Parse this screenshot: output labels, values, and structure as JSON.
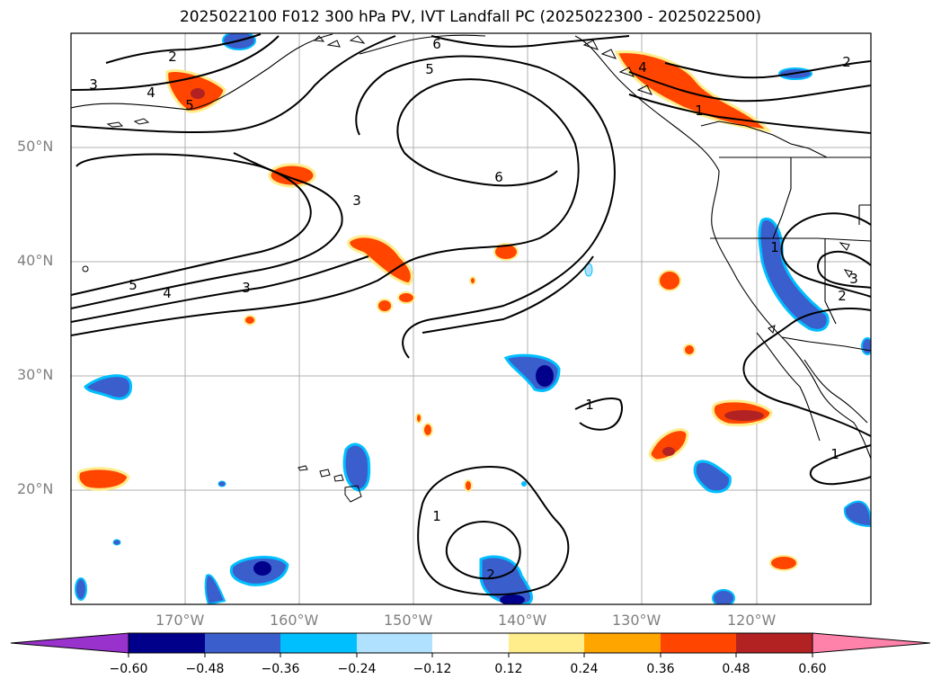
{
  "title": "2025022100 F012 300 hPa PV, IVT Landfall PC (2025022300 - 2025022500)",
  "map": {
    "lon_range": [
      -180,
      -110
    ],
    "lat_range": [
      10,
      60
    ],
    "lat_ticks": [
      "50°N",
      "40°N",
      "30°N",
      "20°N"
    ],
    "lon_ticks": [
      "170°W",
      "160°W",
      "150°W",
      "140°W",
      "130°W",
      "120°W"
    ],
    "grid": true,
    "contour_labels": [
      "2",
      "3",
      "4",
      "5",
      "6",
      "5",
      "6",
      "3",
      "5",
      "4",
      "3",
      "4",
      "1",
      "2",
      "1",
      "3",
      "2",
      "1",
      "1",
      "2",
      "1"
    ]
  },
  "colorbar": {
    "tick_labels": [
      "−0.60",
      "−0.48",
      "−0.36",
      "−0.24",
      "−0.12",
      "0.12",
      "0.24",
      "0.36",
      "0.48",
      "0.60"
    ],
    "colors": [
      "#9932cc",
      "#00008b",
      "#3a5fcd",
      "#00bfff",
      "#b0e2ff",
      "#ffffff",
      "#ffec8b",
      "#ffa500",
      "#ff4500",
      "#b22222",
      "#ff82ab"
    ]
  }
}
